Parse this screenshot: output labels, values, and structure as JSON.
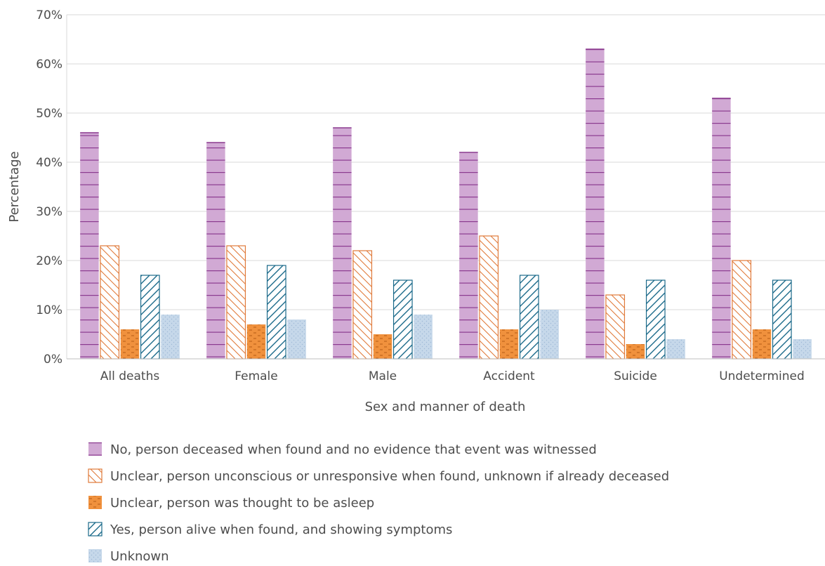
{
  "chart_data": {
    "type": "bar",
    "categories": [
      "All deaths",
      "Female",
      "Male",
      "Accident",
      "Suicide",
      "Undetermined"
    ],
    "series": [
      {
        "name": "No, person deceased when found and no evidence that event was witnessed",
        "values": [
          46,
          44,
          47,
          42,
          63,
          53
        ],
        "color": "#d1a9d4",
        "line_color": "#8b3a8f",
        "pattern": "horizontal"
      },
      {
        "name": "Unclear, person unconscious or unresponsive when found, unknown if already deceased",
        "values": [
          23,
          23,
          22,
          25,
          13,
          20
        ],
        "color": "#ffffff",
        "line_color": "#e07a3a",
        "pattern": "backslash"
      },
      {
        "name": "Unclear, person was thought to be asleep",
        "values": [
          6,
          7,
          5,
          6,
          3,
          6
        ],
        "color": "#f0913d",
        "line_color": "#b45a15",
        "pattern": "dashes"
      },
      {
        "name": "Yes, person alive when found, and showing symptoms",
        "values": [
          17,
          19,
          16,
          17,
          16,
          16
        ],
        "color": "#ffffff",
        "line_color": "#1b6a8a",
        "pattern": "slash"
      },
      {
        "name": "Unknown",
        "values": [
          9,
          8,
          9,
          10,
          4,
          4
        ],
        "color": "#c6d8ea",
        "line_color": "#9fb9d6",
        "pattern": "dots"
      }
    ],
    "xlabel": "Sex and manner of death",
    "ylabel": "Percentage",
    "ylim": [
      0,
      70
    ],
    "yticks": [
      "0%",
      "10%",
      "20%",
      "30%",
      "40%",
      "50%",
      "60%",
      "70%"
    ],
    "grid": true,
    "legend_position": "bottom"
  }
}
